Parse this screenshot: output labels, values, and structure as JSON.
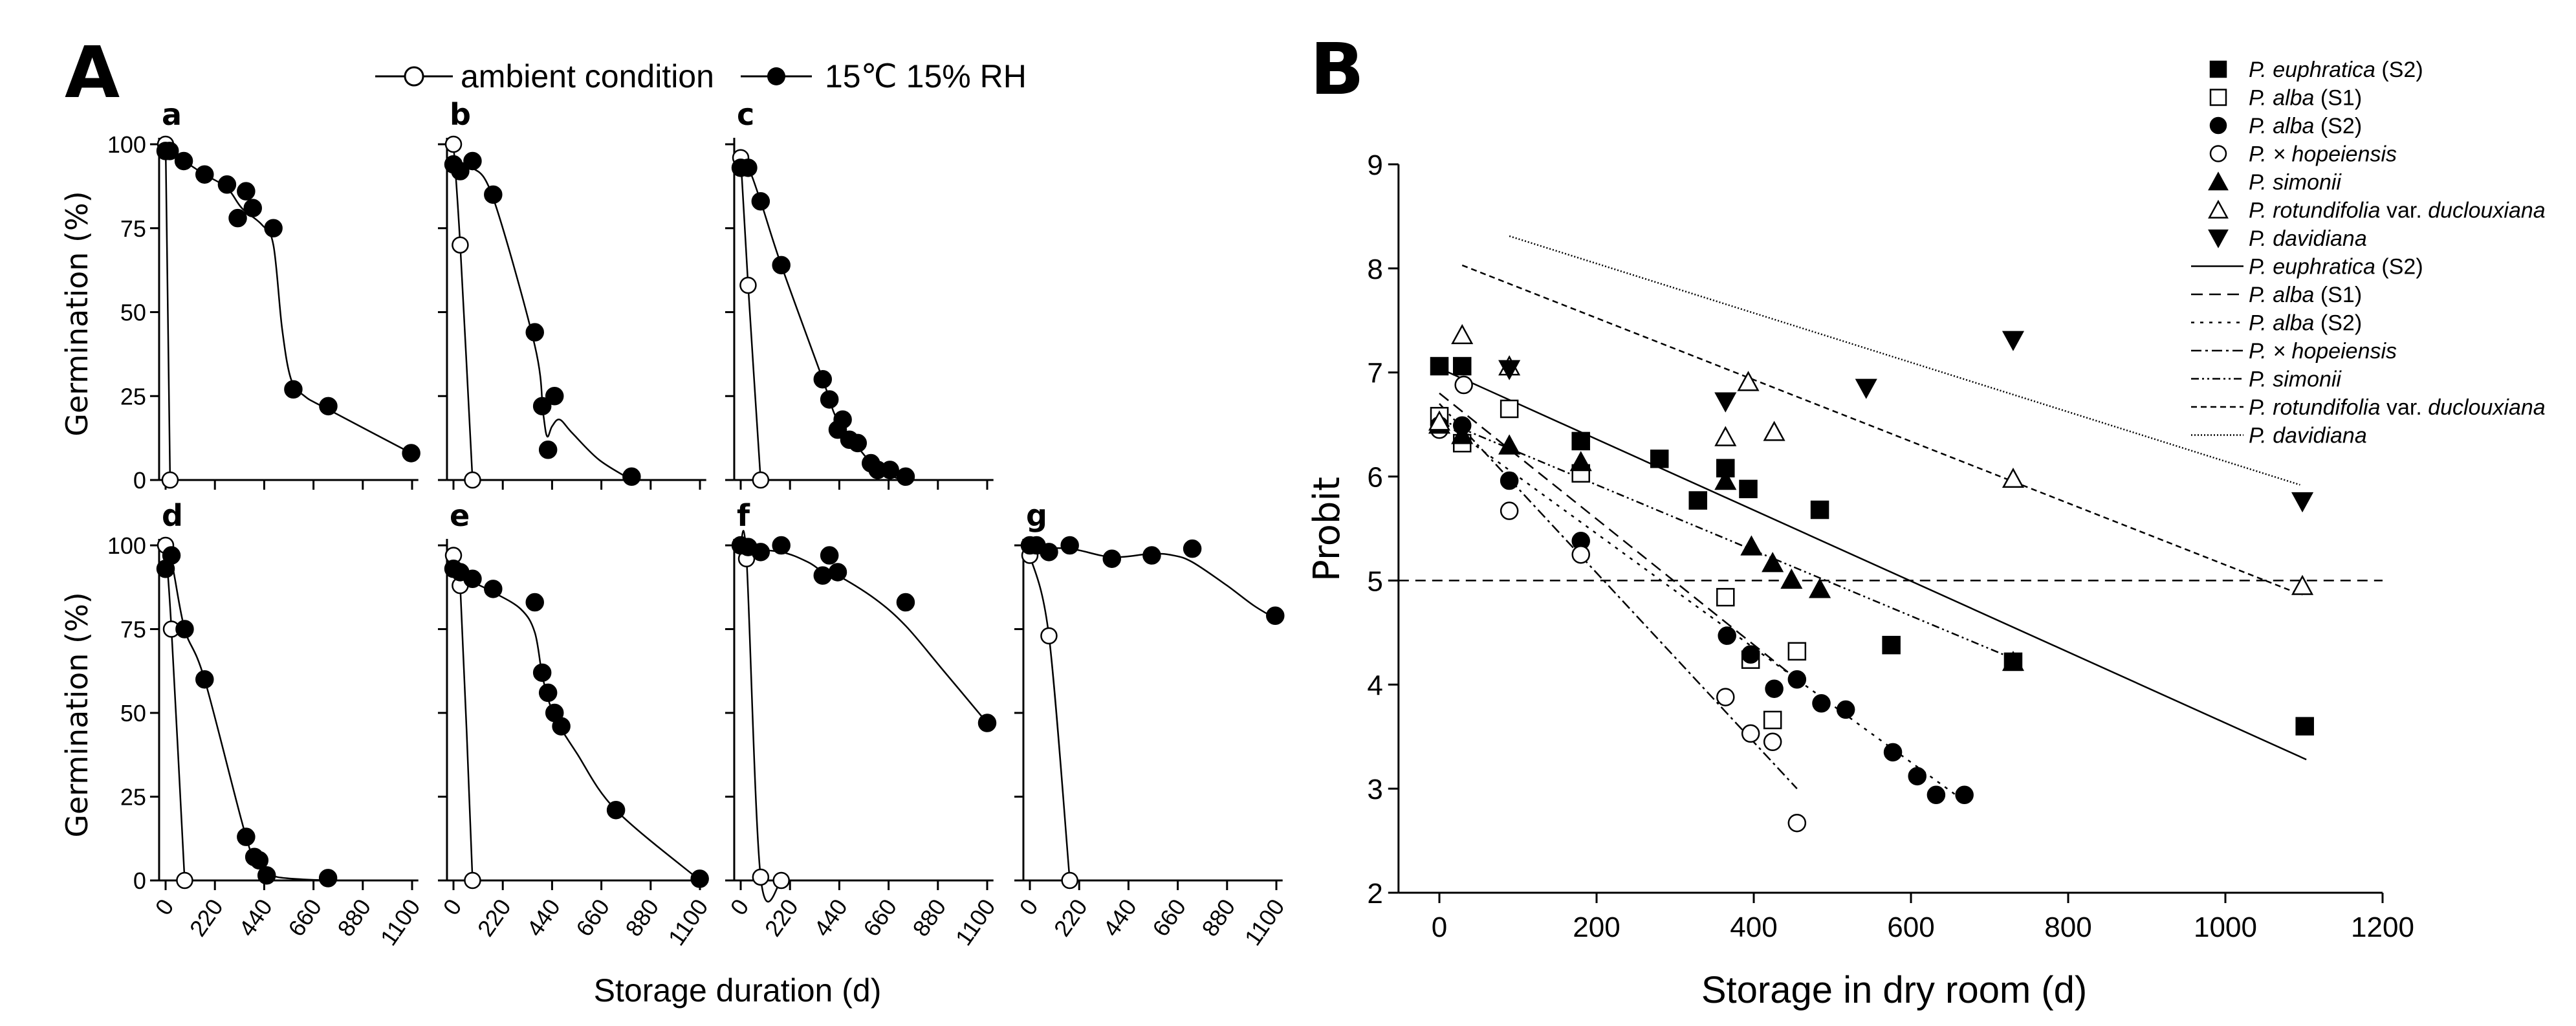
{
  "chart_data": [
    {
      "type": "line",
      "panel_title": "A",
      "xlabel": "Storage duration (d)",
      "ylabel": "Germination (%)",
      "xlim": [
        0,
        1100
      ],
      "ylim": [
        0,
        100
      ],
      "xticks": [
        0,
        220,
        440,
        660,
        880,
        1100
      ],
      "yticks": [
        0,
        25,
        50,
        75,
        100
      ],
      "legend": [
        {
          "label": "ambient condition",
          "marker": "circle-open"
        },
        {
          "label": "15℃ 15% RH",
          "marker": "circle-filled"
        }
      ],
      "subplots": [
        {
          "label": "a",
          "ambient": [
            [
              0,
              100
            ],
            [
              20,
              0
            ]
          ],
          "dry": [
            [
              0,
              98
            ],
            [
              18,
              98
            ],
            [
              81,
              95
            ],
            [
              174,
              91
            ],
            [
              274,
              88
            ],
            [
              322,
              78
            ],
            [
              359,
              86
            ],
            [
              389,
              81
            ],
            [
              481,
              75
            ],
            [
              570,
              27
            ],
            [
              726,
              22
            ],
            [
              1096,
              8
            ]
          ],
          "dry_fit": [
            [
              0,
              98
            ],
            [
              81,
              95
            ],
            [
              174,
              91
            ],
            [
              274,
              87
            ],
            [
              340,
              81
            ],
            [
              430,
              76
            ],
            [
              481,
              70
            ],
            [
              520,
              45
            ],
            [
              560,
              30
            ],
            [
              620,
              25
            ],
            [
              726,
              21
            ],
            [
              1096,
              8
            ]
          ]
        },
        {
          "label": "b",
          "ambient": [
            [
              0,
              100
            ],
            [
              30,
              70
            ],
            [
              85,
              0
            ]
          ],
          "dry": [
            [
              0,
              94
            ],
            [
              30,
              92
            ],
            [
              85,
              95
            ],
            [
              177,
              85
            ],
            [
              363,
              44
            ],
            [
              396,
              22
            ],
            [
              451,
              25
            ],
            [
              422,
              9
            ],
            [
              795,
              1
            ]
          ],
          "dry_fit": [
            [
              0,
              93
            ],
            [
              40,
              93
            ],
            [
              85,
              93
            ],
            [
              177,
              84
            ],
            [
              363,
              40
            ],
            [
              400,
              20
            ],
            [
              418,
              13
            ],
            [
              440,
              16
            ],
            [
              474,
              18
            ],
            [
              530,
              14
            ],
            [
              650,
              6
            ],
            [
              795,
              0
            ]
          ]
        },
        {
          "label": "c",
          "ambient": [
            [
              0,
              96
            ],
            [
              33,
              58
            ],
            [
              89,
              0
            ]
          ],
          "dry": [
            [
              0,
              93
            ],
            [
              33,
              93
            ],
            [
              89,
              83
            ],
            [
              181,
              64
            ],
            [
              366,
              30
            ],
            [
              396,
              24
            ],
            [
              433,
              15
            ],
            [
              455,
              18
            ],
            [
              485,
              12
            ],
            [
              522,
              11
            ],
            [
              581,
              5
            ],
            [
              611,
              3
            ],
            [
              666,
              3
            ],
            [
              736,
              1
            ]
          ],
          "dry_fit": [
            [
              0,
              93
            ],
            [
              33,
              93
            ],
            [
              89,
              83
            ],
            [
              181,
              64
            ],
            [
              366,
              30
            ],
            [
              430,
              18
            ],
            [
              520,
              10
            ],
            [
              600,
              4
            ],
            [
              680,
              1
            ],
            [
              736,
              0
            ]
          ]
        },
        {
          "label": "d",
          "ambient": [
            [
              0,
              100
            ],
            [
              26,
              75
            ],
            [
              85,
              0
            ]
          ],
          "dry": [
            [
              0,
              93
            ],
            [
              26,
              97
            ],
            [
              85,
              75
            ],
            [
              174,
              60
            ],
            [
              359,
              13
            ],
            [
              396,
              7
            ],
            [
              418,
              6
            ],
            [
              451,
              1.5
            ],
            [
              725,
              0.7
            ]
          ],
          "dry_fit": [
            [
              0,
              92
            ],
            [
              26,
              95
            ],
            [
              85,
              75
            ],
            [
              174,
              60
            ],
            [
              359,
              13
            ],
            [
              420,
              4
            ],
            [
              500,
              1
            ],
            [
              725,
              0
            ]
          ]
        },
        {
          "label": "e",
          "ambient": [
            [
              0,
              97
            ],
            [
              30,
              88
            ],
            [
              85,
              0
            ]
          ],
          "dry": [
            [
              0,
              93
            ],
            [
              30,
              92
            ],
            [
              85,
              90
            ],
            [
              177,
              87
            ],
            [
              363,
              83
            ],
            [
              396,
              62
            ],
            [
              422,
              56
            ],
            [
              451,
              50
            ],
            [
              481,
              46
            ],
            [
              725,
              21
            ],
            [
              1099,
              0.5
            ]
          ],
          "dry_fit": [
            [
              0,
              91
            ],
            [
              85,
              89
            ],
            [
              177,
              86
            ],
            [
              300,
              81
            ],
            [
              363,
              74
            ],
            [
              400,
              60
            ],
            [
              451,
              49
            ],
            [
              550,
              38
            ],
            [
              725,
              21
            ],
            [
              1100,
              0
            ]
          ]
        },
        {
          "label": "f",
          "ambient": [
            [
              0,
              100
            ],
            [
              26,
              96
            ],
            [
              89,
              1
            ],
            [
              181,
              0
            ]
          ],
          "dry": [
            [
              0,
              100
            ],
            [
              33,
              99.5
            ],
            [
              89,
              98
            ],
            [
              181,
              100
            ],
            [
              366,
              91
            ],
            [
              396,
              97
            ],
            [
              433,
              92
            ],
            [
              736,
              83
            ],
            [
              1100,
              47
            ]
          ],
          "dry_fit": [
            [
              0,
              99
            ],
            [
              181,
              98
            ],
            [
              300,
              95
            ],
            [
              370,
              92
            ],
            [
              433,
              91
            ],
            [
              600,
              84
            ],
            [
              736,
              76
            ],
            [
              900,
              63
            ],
            [
              1100,
              47
            ]
          ]
        },
        {
          "label": "g",
          "ambient": [
            [
              0,
              97
            ],
            [
              85,
              73
            ],
            [
              178,
              0
            ]
          ],
          "dry": [
            [
              0,
              100
            ],
            [
              30,
              100
            ],
            [
              85,
              98
            ],
            [
              178,
              100
            ],
            [
              366,
              96
            ],
            [
              544,
              97
            ],
            [
              725,
              99
            ],
            [
              1095,
              79
            ]
          ],
          "dry_fit": [
            [
              0,
              99
            ],
            [
              178,
              99
            ],
            [
              366,
              96.5
            ],
            [
              544,
              97.5
            ],
            [
              640,
              97
            ],
            [
              725,
              95
            ],
            [
              880,
              88
            ],
            [
              1000,
              82
            ],
            [
              1100,
              78
            ]
          ]
        }
      ]
    },
    {
      "type": "scatter",
      "panel_title": "B",
      "xlabel": "Storage in dry room (d)",
      "ylabel": "Probit",
      "xlim": [
        0,
        1200
      ],
      "ylim": [
        2,
        9
      ],
      "xticks": [
        0,
        200,
        400,
        600,
        800,
        1000,
        1200
      ],
      "yticks": [
        2,
        3,
        4,
        5,
        6,
        7,
        8,
        9
      ],
      "reference_line_y": 5,
      "legend_position": "top-right",
      "series": [
        {
          "genus": "P.",
          "name": "euphratica",
          "suffix": " (S2)",
          "marker": "square-filled",
          "points": [
            [
              0,
              7.06
            ],
            [
              29,
              7.06
            ],
            [
              180,
              6.34
            ],
            [
              280,
              6.17
            ],
            [
              329,
              5.77
            ],
            [
              364,
              6.08
            ],
            [
              393,
              5.88
            ],
            [
              484,
              5.68
            ],
            [
              575,
              4.38
            ],
            [
              730,
              4.22
            ],
            [
              1101,
              3.6
            ]
          ],
          "fit": [
            [
              0,
              7.04
            ],
            [
              1103,
              3.28
            ]
          ]
        },
        {
          "genus": "P.",
          "name": "alba",
          "suffix": " (S1)",
          "marker": "square-open",
          "points": [
            [
              0,
              6.58
            ],
            [
              29,
              6.32
            ],
            [
              89,
              6.65
            ],
            [
              180,
              6.03
            ],
            [
              364,
              4.84
            ],
            [
              396,
              4.24
            ],
            [
              424,
              3.66
            ],
            [
              455,
              4.32
            ]
          ],
          "fit": [
            [
              0,
              6.8
            ],
            [
              455,
              4.05
            ]
          ]
        },
        {
          "genus": "P.",
          "name": "alba",
          "suffix": " (S2)",
          "marker": "circle-filled",
          "points": [
            [
              0,
              6.49
            ],
            [
              29,
              6.49
            ],
            [
              89,
              5.96
            ],
            [
              180,
              5.38
            ],
            [
              366,
              4.47
            ],
            [
              396,
              4.29
            ],
            [
              426,
              3.96
            ],
            [
              455,
              4.05
            ],
            [
              486,
              3.82
            ],
            [
              517,
              3.76
            ],
            [
              577,
              3.35
            ],
            [
              608,
              3.12
            ],
            [
              632,
              2.94
            ],
            [
              668,
              2.94
            ]
          ],
          "fit": [
            [
              0,
              6.55
            ],
            [
              668,
              2.88
            ]
          ]
        },
        {
          "genus": "P.",
          "name": "× hopeiensis",
          "suffix": "",
          "marker": "circle-open",
          "points": [
            [
              0,
              6.45
            ],
            [
              31,
              6.88
            ],
            [
              89,
              5.67
            ],
            [
              180,
              5.25
            ],
            [
              364,
              3.88
            ],
            [
              396,
              3.53
            ],
            [
              424,
              3.45
            ],
            [
              455,
              2.67
            ]
          ],
          "fit": [
            [
              0,
              6.7
            ],
            [
              455,
              3.0
            ]
          ]
        },
        {
          "genus": "P.",
          "name": "simonii",
          "suffix": "",
          "marker": "triangle-filled",
          "points": [
            [
              0,
              6.5
            ],
            [
              29,
              6.4
            ],
            [
              89,
              6.3
            ],
            [
              180,
              6.14
            ],
            [
              364,
              5.96
            ],
            [
              397,
              5.33
            ],
            [
              424,
              5.17
            ],
            [
              448,
              5.01
            ],
            [
              484,
              4.92
            ],
            [
              730,
              4.22
            ]
          ],
          "fit": [
            [
              0,
              6.55
            ],
            [
              730,
              4.25
            ]
          ]
        },
        {
          "genus": "P.",
          "name": "rotundifolia",
          "suffix": " var. duclouxiana",
          "suffix_italic_part": "duclouxiana",
          "marker": "triangle-open",
          "points": [
            [
              0,
              6.53
            ],
            [
              29,
              7.36
            ],
            [
              89,
              7.06
            ],
            [
              364,
              6.38
            ],
            [
              393,
              6.91
            ],
            [
              426,
              6.43
            ],
            [
              730,
              5.98
            ],
            [
              1098,
              4.95
            ]
          ],
          "fit": [
            [
              29,
              8.03
            ],
            [
              1098,
              4.86
            ]
          ]
        },
        {
          "genus": "P.",
          "name": "davidiana",
          "suffix": "",
          "marker": "triangle-down-filled",
          "points": [
            [
              89,
              7.03
            ],
            [
              364,
              6.72
            ],
            [
              543,
              6.85
            ],
            [
              730,
              7.31
            ],
            [
              1098,
              5.76
            ]
          ],
          "fit": [
            [
              89,
              8.31
            ],
            [
              1095,
              5.92
            ]
          ]
        }
      ]
    }
  ]
}
